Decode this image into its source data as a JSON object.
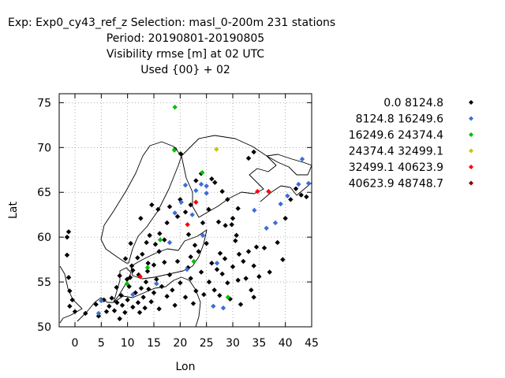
{
  "header": {
    "line1": "Exp: Exp0_cy43_ref_z   Selection: masl_0-200m    231 stations",
    "line2": "Period: 20190801-20190805",
    "line3": "Visibility rmse [m] at  02 UTC",
    "line4": "Used {00} + 02"
  },
  "chart_data": {
    "type": "scatter",
    "title": "Visibility rmse [m] at  02 UTC",
    "xlabel": "Lon",
    "ylabel": "Lat",
    "xlim": [
      -3,
      45
    ],
    "ylim": [
      50,
      76
    ],
    "xticks": [
      "0",
      "5",
      "10",
      "15",
      "20",
      "25",
      "30",
      "35",
      "40",
      "45"
    ],
    "yticks": [
      "50",
      "55",
      "60",
      "65",
      "70",
      "75"
    ],
    "grid": true,
    "legend_position": "right",
    "series": [
      {
        "name": "0.0 8124.8",
        "color": "#000000",
        "points": [
          [
            -1.5,
            58
          ],
          [
            -1.2,
            55.5
          ],
          [
            -1,
            54
          ],
          [
            -0.5,
            53
          ],
          [
            0,
            51.7
          ],
          [
            -1,
            52.3
          ],
          [
            -1.5,
            60
          ],
          [
            -1.2,
            60.6
          ],
          [
            2,
            51.5
          ],
          [
            4,
            52.5
          ],
          [
            4.5,
            51.2
          ],
          [
            5.5,
            53
          ],
          [
            6,
            51.7
          ],
          [
            6.5,
            52.3
          ],
          [
            7,
            53.2
          ],
          [
            7.5,
            51.8
          ],
          [
            8,
            52.7
          ],
          [
            8.5,
            50.9
          ],
          [
            8.8,
            53.5
          ],
          [
            9,
            52.4
          ],
          [
            9.5,
            51.6
          ],
          [
            10,
            53
          ],
          [
            10.3,
            54.5
          ],
          [
            10.5,
            55.5
          ],
          [
            11,
            56.3
          ],
          [
            11,
            52.2
          ],
          [
            11.5,
            53.8
          ],
          [
            12,
            52.7
          ],
          [
            12.3,
            51.6
          ],
          [
            12.6,
            54.3
          ],
          [
            13,
            53.3
          ],
          [
            13.3,
            52.1
          ],
          [
            13.5,
            55
          ],
          [
            13.8,
            56.2
          ],
          [
            14,
            54.2
          ],
          [
            14.5,
            52.8
          ],
          [
            15,
            53.8
          ],
          [
            15,
            56.9
          ],
          [
            15.5,
            55.3
          ],
          [
            16,
            58.4
          ],
          [
            16,
            52
          ],
          [
            16.5,
            54.5
          ],
          [
            17,
            57.2
          ],
          [
            17.5,
            53.4
          ],
          [
            17,
            59.7
          ],
          [
            18,
            55.8
          ],
          [
            18.5,
            54.1
          ],
          [
            19,
            52.4
          ],
          [
            19.5,
            57.3
          ],
          [
            20,
            54.9
          ],
          [
            21,
            53.3
          ],
          [
            21.5,
            56.6
          ],
          [
            22,
            55.4
          ],
          [
            22.5,
            52.6
          ],
          [
            23,
            54
          ],
          [
            23.5,
            58.4
          ],
          [
            24,
            56.1
          ],
          [
            24.5,
            53.6
          ],
          [
            25,
            59.3
          ],
          [
            25.5,
            55
          ],
          [
            26,
            57.1
          ],
          [
            26.5,
            54.1
          ],
          [
            27,
            56.4
          ],
          [
            27.5,
            53.5
          ],
          [
            28,
            55.9
          ],
          [
            28.5,
            57.6
          ],
          [
            29,
            54.9
          ],
          [
            29.5,
            53.1
          ],
          [
            30,
            56.7
          ],
          [
            30.5,
            59.6
          ],
          [
            31,
            55.2
          ],
          [
            31.5,
            52.5
          ],
          [
            32,
            57.3
          ],
          [
            32.5,
            55.4
          ],
          [
            33,
            58.4
          ],
          [
            33.5,
            54.1
          ],
          [
            34,
            53.3
          ],
          [
            34,
            56.8
          ],
          [
            34.5,
            58.9
          ],
          [
            35,
            55.6
          ],
          [
            36,
            58.8
          ],
          [
            37,
            56.1
          ],
          [
            38.5,
            59.4
          ],
          [
            39.5,
            57.5
          ],
          [
            40,
            62.1
          ],
          [
            41,
            64.2
          ],
          [
            42,
            65.4
          ],
          [
            43,
            64.7
          ],
          [
            44,
            64.5
          ],
          [
            17.5,
            61.6
          ],
          [
            18,
            63.4
          ],
          [
            19.5,
            62.3
          ],
          [
            20,
            64.2
          ],
          [
            21,
            62.8
          ],
          [
            22,
            63.6
          ],
          [
            23,
            66.3
          ],
          [
            24,
            67.1
          ],
          [
            26,
            66.5
          ],
          [
            26.6,
            66.1
          ],
          [
            28,
            65.1
          ],
          [
            29,
            64.2
          ],
          [
            30,
            62.1
          ],
          [
            31,
            63.2
          ],
          [
            33,
            68.8
          ],
          [
            34,
            69.5
          ],
          [
            15.8,
            63.1
          ],
          [
            14.6,
            63.6
          ],
          [
            19,
            69.8
          ],
          [
            20.1,
            69.3
          ],
          [
            12.5,
            62.1
          ],
          [
            14.2,
            60.2
          ],
          [
            16.1,
            60.4
          ],
          [
            15.3,
            59.2
          ],
          [
            13.6,
            59.4
          ],
          [
            12.8,
            58.1
          ],
          [
            11.9,
            57.7
          ],
          [
            10.6,
            59.3
          ],
          [
            13.9,
            57.1
          ],
          [
            12.1,
            55.8
          ],
          [
            10.8,
            56.8
          ],
          [
            9.9,
            55.3
          ],
          [
            8.5,
            55.7
          ],
          [
            9.6,
            57.6
          ],
          [
            7.9,
            54.4
          ],
          [
            21.6,
            60.3
          ],
          [
            22.8,
            59.1
          ],
          [
            24.3,
            61.6
          ],
          [
            25.4,
            63.1
          ],
          [
            27.3,
            61.7
          ],
          [
            28.6,
            61.3
          ],
          [
            29.8,
            61.4
          ],
          [
            30.7,
            60.2
          ],
          [
            31.2,
            58.1
          ],
          [
            22,
            57.8
          ],
          [
            27.6,
            58.2
          ]
        ]
      },
      {
        "name": "8124.8 16249.6",
        "color": "#3c6ed7",
        "points": [
          [
            4.5,
            51.5
          ],
          [
            5,
            52.9
          ],
          [
            11,
            53.6
          ],
          [
            15.5,
            54.8
          ],
          [
            18,
            59.4
          ],
          [
            19,
            62.7
          ],
          [
            20.2,
            63.9
          ],
          [
            21,
            65.8
          ],
          [
            22.3,
            62.5
          ],
          [
            23,
            65.2
          ],
          [
            24,
            65.9
          ],
          [
            25,
            65.7
          ],
          [
            24.3,
            60.2
          ],
          [
            25,
            64.9
          ],
          [
            27,
            57.1
          ],
          [
            26.3,
            52.3
          ],
          [
            28.2,
            52.1
          ],
          [
            34.1,
            63
          ],
          [
            36.4,
            61
          ],
          [
            38.1,
            61.6
          ],
          [
            39.1,
            63.7
          ],
          [
            40.4,
            64.6
          ],
          [
            42.5,
            65.9
          ],
          [
            43.2,
            68.7
          ],
          [
            44.4,
            66
          ],
          [
            21.3,
            56.4
          ]
        ]
      },
      {
        "name": "16249.6 24374.4",
        "color": "#00c000",
        "points": [
          [
            19,
            74.5
          ],
          [
            18.9,
            69.7
          ],
          [
            13.8,
            56.6
          ],
          [
            9.9,
            54.8
          ],
          [
            22.6,
            57.3
          ],
          [
            29.1,
            53.3
          ],
          [
            24.2,
            67.2
          ],
          [
            16.2,
            59.7
          ]
        ]
      },
      {
        "name": "24374.4 32499.1",
        "color": "#c8c800",
        "points": [
          [
            26.9,
            69.8
          ]
        ]
      },
      {
        "name": "32499.1 40623.9",
        "color": "#ff0000",
        "points": [
          [
            12.4,
            55.6
          ],
          [
            21.4,
            61.4
          ],
          [
            23,
            63.9
          ],
          [
            34.7,
            65.1
          ],
          [
            36.8,
            65.1
          ]
        ]
      },
      {
        "name": "40623.9 48748.7",
        "color": "#8b0000",
        "points": []
      }
    ]
  }
}
